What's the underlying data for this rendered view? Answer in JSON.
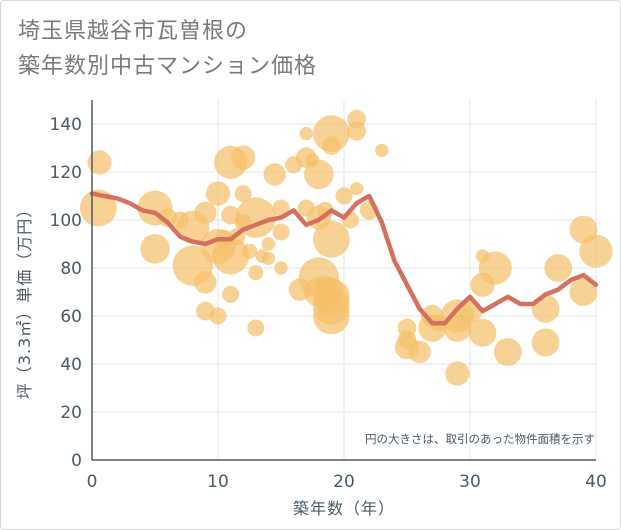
{
  "chart_data": {
    "type": "scatter",
    "title": "埼玉県越谷市瓦曽根の\n築年数別中古マンション価格",
    "xlabel": "築年数（年）",
    "ylabel": "坪（3.3㎡）単価（万円）",
    "note": "円の大きさは、取引のあった物件面積を示す",
    "xlim": [
      0,
      40
    ],
    "ylim": [
      0,
      150
    ],
    "xticks": [
      0,
      10,
      20,
      30,
      40
    ],
    "yticks": [
      0,
      20,
      40,
      60,
      80,
      100,
      120,
      140
    ],
    "grid": true,
    "colors": {
      "bubble": "#f5bf68",
      "line": "#d5705d",
      "axis": "#4a5b66"
    },
    "bubbles": [
      {
        "x": 0.5,
        "y": 105,
        "s": 1.6
      },
      {
        "x": 0.6,
        "y": 124,
        "s": 0.9
      },
      {
        "x": 5,
        "y": 105,
        "s": 1.5
      },
      {
        "x": 5,
        "y": 88,
        "s": 1.2
      },
      {
        "x": 6,
        "y": 101,
        "s": 0.6
      },
      {
        "x": 7,
        "y": 100,
        "s": 0.5
      },
      {
        "x": 8,
        "y": 97,
        "s": 1.4
      },
      {
        "x": 8,
        "y": 81,
        "s": 1.8
      },
      {
        "x": 9,
        "y": 103,
        "s": 0.8
      },
      {
        "x": 9,
        "y": 74,
        "s": 0.8
      },
      {
        "x": 9,
        "y": 62,
        "s": 0.6
      },
      {
        "x": 10,
        "y": 111,
        "s": 0.9
      },
      {
        "x": 10,
        "y": 89,
        "s": 1.5
      },
      {
        "x": 10,
        "y": 60,
        "s": 0.5
      },
      {
        "x": 10.5,
        "y": 92,
        "s": 0.6
      },
      {
        "x": 11,
        "y": 124,
        "s": 1.4
      },
      {
        "x": 11,
        "y": 85,
        "s": 1.6
      },
      {
        "x": 11,
        "y": 102,
        "s": 0.6
      },
      {
        "x": 11,
        "y": 69,
        "s": 0.5
      },
      {
        "x": 11.5,
        "y": 93,
        "s": 0.5
      },
      {
        "x": 12,
        "y": 126,
        "s": 0.9
      },
      {
        "x": 12,
        "y": 111,
        "s": 0.5
      },
      {
        "x": 12,
        "y": 99,
        "s": 0.5
      },
      {
        "x": 12.5,
        "y": 87,
        "s": 0.4
      },
      {
        "x": 13,
        "y": 101,
        "s": 1.8
      },
      {
        "x": 13,
        "y": 78,
        "s": 0.4
      },
      {
        "x": 13,
        "y": 55,
        "s": 0.5
      },
      {
        "x": 13.5,
        "y": 85,
        "s": 0.3
      },
      {
        "x": 14,
        "y": 90,
        "s": 0.3
      },
      {
        "x": 14,
        "y": 84,
        "s": 0.3
      },
      {
        "x": 14.5,
        "y": 119,
        "s": 0.8
      },
      {
        "x": 15,
        "y": 105,
        "s": 0.5
      },
      {
        "x": 15,
        "y": 95,
        "s": 0.5
      },
      {
        "x": 15,
        "y": 80,
        "s": 0.3
      },
      {
        "x": 16,
        "y": 123,
        "s": 0.5
      },
      {
        "x": 16.5,
        "y": 71,
        "s": 0.8
      },
      {
        "x": 17,
        "y": 126,
        "s": 0.7
      },
      {
        "x": 17,
        "y": 136,
        "s": 0.3
      },
      {
        "x": 17,
        "y": 105,
        "s": 0.5
      },
      {
        "x": 17.5,
        "y": 125,
        "s": 0.3
      },
      {
        "x": 18,
        "y": 119,
        "s": 1.2
      },
      {
        "x": 18,
        "y": 101,
        "s": 0.9
      },
      {
        "x": 18,
        "y": 76,
        "s": 1.8
      },
      {
        "x": 18,
        "y": 70,
        "s": 1.2
      },
      {
        "x": 18.5,
        "y": 73,
        "s": 0.6
      },
      {
        "x": 18.5,
        "y": 104,
        "s": 0.5
      },
      {
        "x": 19,
        "y": 136,
        "s": 1.6
      },
      {
        "x": 19,
        "y": 131,
        "s": 0.6
      },
      {
        "x": 19,
        "y": 92,
        "s": 1.6
      },
      {
        "x": 19,
        "y": 68,
        "s": 1.6
      },
      {
        "x": 19,
        "y": 64,
        "s": 1.6
      },
      {
        "x": 19,
        "y": 60,
        "s": 1.6
      },
      {
        "x": 19,
        "y": 71,
        "s": 0.9
      },
      {
        "x": 20,
        "y": 110,
        "s": 0.5
      },
      {
        "x": 20.5,
        "y": 100,
        "s": 0.5
      },
      {
        "x": 21,
        "y": 142,
        "s": 0.6
      },
      {
        "x": 21,
        "y": 137,
        "s": 0.6
      },
      {
        "x": 21,
        "y": 113,
        "s": 0.3
      },
      {
        "x": 22,
        "y": 104,
        "s": 0.6
      },
      {
        "x": 23,
        "y": 129,
        "s": 0.3
      },
      {
        "x": 25,
        "y": 55,
        "s": 0.6
      },
      {
        "x": 25,
        "y": 50,
        "s": 0.6
      },
      {
        "x": 25,
        "y": 47,
        "s": 0.9
      },
      {
        "x": 26,
        "y": 45,
        "s": 0.8
      },
      {
        "x": 27,
        "y": 60,
        "s": 0.8
      },
      {
        "x": 27,
        "y": 55,
        "s": 1.1
      },
      {
        "x": 27.5,
        "y": 57,
        "s": 0.5
      },
      {
        "x": 29,
        "y": 60,
        "s": 1.4
      },
      {
        "x": 29,
        "y": 55,
        "s": 1.1
      },
      {
        "x": 29,
        "y": 36,
        "s": 0.9
      },
      {
        "x": 30,
        "y": 62,
        "s": 0.9
      },
      {
        "x": 31,
        "y": 53,
        "s": 1.1
      },
      {
        "x": 31,
        "y": 73,
        "s": 0.9
      },
      {
        "x": 31,
        "y": 85,
        "s": 0.3
      },
      {
        "x": 32,
        "y": 80,
        "s": 1.4
      },
      {
        "x": 33,
        "y": 45,
        "s": 1.1
      },
      {
        "x": 36,
        "y": 63,
        "s": 1.1
      },
      {
        "x": 36,
        "y": 49,
        "s": 1.1
      },
      {
        "x": 37,
        "y": 80,
        "s": 1.1
      },
      {
        "x": 39,
        "y": 96,
        "s": 1.1
      },
      {
        "x": 39,
        "y": 70,
        "s": 1.1
      },
      {
        "x": 40,
        "y": 87,
        "s": 1.4
      }
    ],
    "series": [
      {
        "x": [
          0,
          1,
          2,
          3,
          4,
          5,
          6,
          7,
          8,
          9,
          10,
          11,
          12,
          13,
          14,
          15,
          16,
          17,
          18,
          19,
          20,
          21,
          22,
          23,
          24,
          25,
          26,
          27,
          28,
          29,
          30,
          31,
          32,
          33,
          34,
          35,
          36,
          37,
          38,
          39,
          40
        ],
        "y": [
          111,
          110,
          109,
          107,
          104,
          103,
          99,
          93,
          91,
          90,
          92,
          92,
          96,
          98,
          100,
          101,
          104,
          98,
          100,
          104,
          101,
          107,
          110,
          99,
          83,
          73,
          63,
          57,
          57,
          63,
          68,
          62,
          65,
          68,
          65,
          65,
          69,
          71,
          75,
          77,
          73
        ]
      }
    ]
  }
}
